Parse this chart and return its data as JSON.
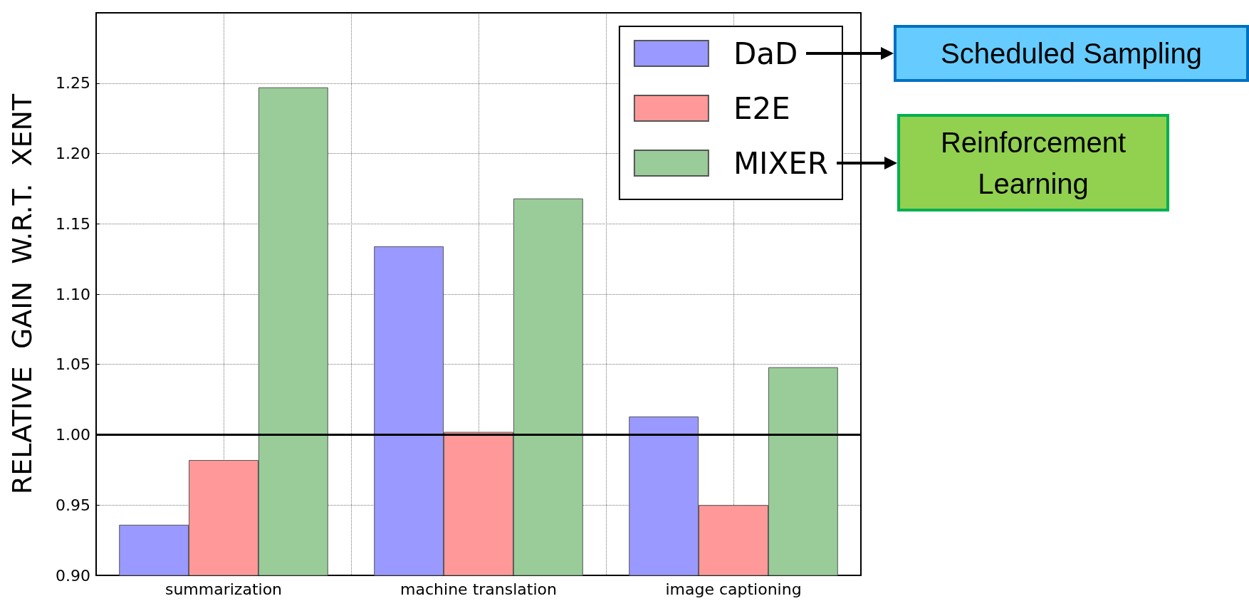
{
  "chart_data": {
    "type": "bar",
    "ylabel": "RELATIVE  GAIN  W.R.T.  XENT",
    "categories": [
      "summarization",
      "machine translation",
      "image captioning"
    ],
    "series": [
      {
        "name": "DaD",
        "color": "#9999ff",
        "values": [
          0.936,
          1.134,
          1.013
        ]
      },
      {
        "name": "E2E",
        "color": "#ff9999",
        "values": [
          0.982,
          1.002,
          0.95
        ]
      },
      {
        "name": "MIXER",
        "color": "#99cc99",
        "values": [
          1.247,
          1.168,
          1.048
        ]
      }
    ],
    "ylim": [
      0.9,
      1.3
    ],
    "yticks": [
      {
        "value": 0.9,
        "label": "0.90"
      },
      0.95,
      {
        "value": 1.0,
        "label": "1.00"
      },
      1.05,
      {
        "value": 1.1,
        "label": "1.10"
      },
      1.15,
      {
        "value": 1.2,
        "label": "1.20"
      },
      1.25
    ],
    "ref_lines": [
      {
        "axis": "y",
        "value": 1.0,
        "color": "#000000",
        "line_style": "solid"
      }
    ],
    "grid": true,
    "legend": "top right",
    "annotations": [
      "Scheduled Sampling",
      "Reinforcement Learning"
    ]
  }
}
